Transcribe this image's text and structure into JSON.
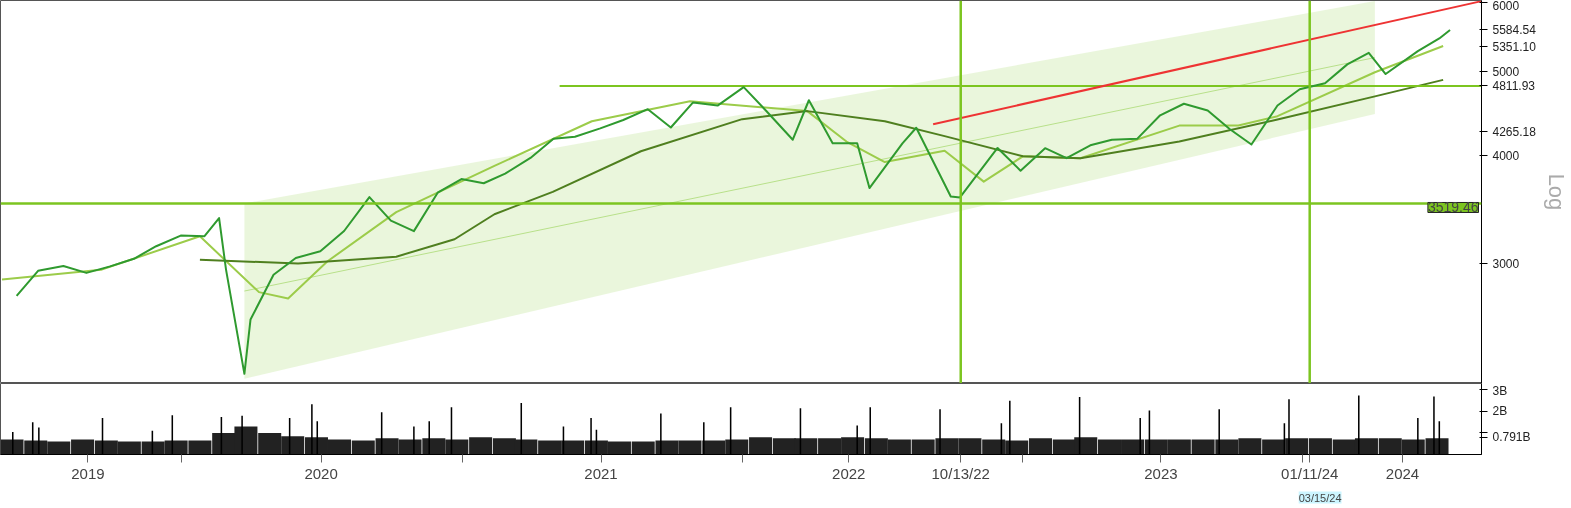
{
  "chart_data": [
    {
      "type": "line",
      "ylabel": "Log",
      "log": true,
      "tick_labels": "y",
      "grid": false,
      "xlim": [
        "2019-05-10",
        "2024-08-22"
      ],
      "ylim": [
        2180,
        6040
      ],
      "yticks": [
        3000,
        4000,
        {
          "value": 4265.18,
          "label": "4265.18"
        },
        {
          "value": 4811.93,
          "label": "4811.93"
        },
        5000,
        {
          "value": 5351.1,
          "label": "5351.10"
        },
        {
          "value": 5584.54,
          "label": "5584.54"
        },
        6000
      ],
      "series": [
        {
          "type": "line",
          "color": "#b8e08a",
          "x": [
            "2020-03-23",
            "2024-04-05"
          ],
          "values": [
            2788,
            5189
          ],
          "lower": [
            2208,
            4465
          ],
          "upper": [
            3520,
            6030
          ]
        },
        {
          "type": "line",
          "color": "#9ccc4a",
          "x": [
            "2019-05-12",
            "2019-09-18",
            "2020-01-25",
            "2020-04-11",
            "2020-05-19",
            "2020-07-09",
            "2020-10-07",
            "2021-02-12",
            "2021-06-19",
            "2021-10-25",
            "2022-01-10",
            "2022-03-27",
            "2022-05-17",
            "2022-07-06",
            "2022-09-22",
            "2022-11-12",
            "2023-01-02",
            "2023-03-18",
            "2023-07-25",
            "2023-10-10",
            "2023-11-30",
            "2024-04-05",
            "2024-07-03"
          ],
          "values": [
            2875,
            2950,
            3225,
            2780,
            2733,
            3016,
            3440,
            3890,
            4380,
            4620,
            4560,
            4500,
            4150,
            3930,
            4050,
            3730,
            3990,
            3970,
            4330,
            4330,
            4440,
            4990,
            5351
          ]
        },
        {
          "type": "line",
          "color": "#4f7f1f",
          "x": [
            "2020-01-25",
            "2020-06-01",
            "2020-10-07",
            "2020-12-22",
            "2021-02-12",
            "2021-04-29",
            "2021-08-22",
            "2022-01-01",
            "2022-03-27",
            "2022-07-06",
            "2022-09-22",
            "2023-01-02",
            "2023-03-18",
            "2023-07-25",
            "2023-11-30",
            "2024-04-05",
            "2024-07-03"
          ],
          "values": [
            3030,
            3000,
            3055,
            3200,
            3420,
            3630,
            4044,
            4405,
            4500,
            4380,
            4210,
            3990,
            3970,
            4150,
            4400,
            4680,
            4890
          ]
        },
        {
          "type": "line",
          "color": "#7cc520",
          "x": [
            "2021-05-08",
            "2024-08-22"
          ],
          "values": [
            4811.93,
            4811.93
          ]
        },
        {
          "type": "line",
          "color": "#ee3333",
          "x": [
            "2022-09-07",
            "2024-08-22"
          ],
          "values": [
            4346,
            6030
          ]
        },
        {
          "type": "line",
          "color": "#2f9a2f",
          "x": [
            "2019-05-31",
            "2019-06-28",
            "2019-07-31",
            "2019-08-30",
            "2019-09-30",
            "2019-10-31",
            "2019-11-29",
            "2019-12-31",
            "2020-01-31",
            "2020-02-19",
            "2020-02-28",
            "2020-03-23",
            "2020-03-31",
            "2020-04-30",
            "2020-05-29",
            "2020-06-30",
            "2020-07-31",
            "2020-09-02",
            "2020-09-30",
            "2020-10-30",
            "2020-11-30",
            "2020-12-31",
            "2021-01-29",
            "2021-02-26",
            "2021-03-31",
            "2021-04-30",
            "2021-05-28",
            "2021-06-30",
            "2021-07-30",
            "2021-08-31",
            "2021-09-30",
            "2021-10-29",
            "2021-11-30",
            "2022-01-03",
            "2022-01-31",
            "2022-03-08",
            "2022-03-29",
            "2022-04-29",
            "2022-05-31",
            "2022-06-16",
            "2022-07-29",
            "2022-08-16",
            "2022-09-30",
            "2022-10-12",
            "2022-11-30",
            "2022-12-30",
            "2023-01-31",
            "2023-02-28",
            "2023-03-31",
            "2023-04-28",
            "2023-05-31",
            "2023-06-30",
            "2023-07-31",
            "2023-08-31",
            "2023-09-29",
            "2023-10-27",
            "2023-11-30",
            "2023-12-29",
            "2024-01-31",
            "2024-02-29",
            "2024-03-28",
            "2024-04-19",
            "2024-05-31",
            "2024-06-28",
            "2024-07-12"
          ],
          "values": [
            2752,
            2942,
            2980,
            2926,
            2977,
            3038,
            3141,
            3231,
            3226,
            3386,
            2954,
            2237,
            2585,
            2912,
            3044,
            3100,
            3271,
            3580,
            3363,
            3270,
            3622,
            3756,
            3714,
            3811,
            3973,
            4181,
            4204,
            4298,
            4395,
            4523,
            4308,
            4605,
            4567,
            4796,
            4516,
            4170,
            4632,
            4132,
            4132,
            3667,
            4130,
            4305,
            3586,
            3577,
            4080,
            3840,
            4077,
            3970,
            4109,
            4169,
            4180,
            4450,
            4589,
            4508,
            4288,
            4117,
            4568,
            4770,
            4846,
            5096,
            5254,
            4967,
            5278,
            5460,
            5584.54
          ]
        }
      ],
      "ref_lines": [
        {
          "axis": "y",
          "value": 3519.46,
          "label": "3519.46",
          "color": "#7cc520"
        },
        {
          "axis": "x",
          "value": "2022-10-13",
          "color": "#7cc520"
        },
        {
          "axis": "x",
          "value": "2024-01-11",
          "color": "#7cc520"
        }
      ]
    },
    {
      "type": "bar",
      "grid": false,
      "xlim": [
        "2019-05-10",
        "2024-08-22"
      ],
      "ylim": [
        0,
        3.3
      ],
      "annotations": [
        "03/15/24"
      ],
      "yticks": [
        {
          "value": 0.791,
          "label": "0.791B"
        },
        {
          "value": 1,
          "label": null
        },
        {
          "value": 2,
          "label": "2B"
        },
        {
          "value": 3,
          "label": "3B"
        }
      ],
      "xticks": [
        {
          "value": "2019-09-01",
          "label": "2019"
        },
        {
          "value": "2020-01-01",
          "label": null
        },
        {
          "value": "2020-07-01",
          "label": "2020"
        },
        {
          "value": "2021-01-01",
          "label": null
        },
        {
          "value": "2021-07-01",
          "label": "2021"
        },
        {
          "value": "2022-01-01",
          "label": null
        },
        {
          "value": "2022-05-20",
          "label": "2022"
        },
        {
          "value": "2022-10-13",
          "label": "10/13/22"
        },
        {
          "value": "2023-01-01",
          "label": null
        },
        {
          "value": "2023-07-01",
          "label": "2023"
        },
        {
          "value": "2024-01-01",
          "label": null
        },
        {
          "value": "2024-01-11",
          "label": "01/11/24"
        },
        {
          "value": "2024-05-11",
          "label": "2024"
        }
      ],
      "series": [
        {
          "color": "#222222",
          "x": [
            "2019-05-25",
            "2019-06-25",
            "2019-07-25",
            "2019-08-25",
            "2019-09-25",
            "2019-10-25",
            "2019-11-25",
            "2019-12-25",
            "2020-01-25",
            "2020-02-25",
            "2020-03-25",
            "2020-04-25",
            "2020-05-25",
            "2020-06-25",
            "2020-07-25",
            "2020-08-25",
            "2020-09-25",
            "2020-10-25",
            "2020-11-25",
            "2020-12-25",
            "2021-01-25",
            "2021-02-25",
            "2021-03-25",
            "2021-04-25",
            "2021-05-25",
            "2021-06-25",
            "2021-07-25",
            "2021-08-25",
            "2021-09-25",
            "2021-10-25",
            "2021-11-25",
            "2021-12-25",
            "2022-01-25",
            "2022-02-25",
            "2022-03-25",
            "2022-04-25",
            "2022-05-25",
            "2022-06-25",
            "2022-07-25",
            "2022-08-25",
            "2022-09-25",
            "2022-10-25",
            "2022-11-25",
            "2022-12-25",
            "2023-01-25",
            "2023-02-25",
            "2023-03-25",
            "2023-04-25",
            "2023-05-25",
            "2023-06-25",
            "2023-07-25",
            "2023-08-25",
            "2023-09-25",
            "2023-10-25",
            "2023-11-25",
            "2023-12-25",
            "2024-01-25",
            "2024-02-25",
            "2024-03-25",
            "2024-04-25",
            "2024-05-25",
            "2024-06-25"
          ],
          "values": [
            0.7,
            0.65,
            0.6,
            0.7,
            0.65,
            0.6,
            0.6,
            0.65,
            0.65,
            1.0,
            1.3,
            1.0,
            0.85,
            0.8,
            0.7,
            0.65,
            0.75,
            0.7,
            0.75,
            0.7,
            0.8,
            0.75,
            0.7,
            0.65,
            0.65,
            0.65,
            0.6,
            0.6,
            0.65,
            0.65,
            0.65,
            0.7,
            0.8,
            0.75,
            0.75,
            0.75,
            0.8,
            0.75,
            0.7,
            0.7,
            0.75,
            0.75,
            0.7,
            0.65,
            0.75,
            0.7,
            0.8,
            0.7,
            0.7,
            0.7,
            0.7,
            0.7,
            0.7,
            0.75,
            0.7,
            0.75,
            0.75,
            0.7,
            0.75,
            0.75,
            0.7,
            0.75
          ]
        },
        {
          "color": "#000000",
          "x": [
            "2019-05-26",
            "2019-06-21",
            "2019-06-29",
            "2019-09-20",
            "2019-11-24",
            "2019-12-20",
            "2020-02-22",
            "2020-03-20",
            "2020-05-21",
            "2020-06-19",
            "2020-06-26",
            "2020-09-18",
            "2020-10-30",
            "2020-11-19",
            "2020-12-18",
            "2021-03-19",
            "2021-05-13",
            "2021-06-18",
            "2021-06-25",
            "2021-09-17",
            "2021-11-12",
            "2021-12-17",
            "2022-03-18",
            "2022-05-31",
            "2022-06-17",
            "2022-09-16",
            "2022-12-05",
            "2022-12-16",
            "2023-03-17",
            "2023-06-04",
            "2023-06-16",
            "2023-09-15",
            "2023-12-09",
            "2023-12-15",
            "2024-03-15",
            "2024-05-31",
            "2024-06-21",
            "2024-06-28"
          ],
          "values": [
            1.05,
            1.5,
            1.25,
            1.7,
            1.1,
            1.83,
            1.74,
            1.8,
            1.7,
            2.33,
            1.55,
            1.96,
            1.3,
            1.55,
            2.2,
            2.39,
            1.3,
            1.7,
            1.15,
            1.9,
            1.5,
            2.2,
            2.15,
            1.35,
            2.2,
            2.1,
            1.45,
            2.5,
            2.67,
            1.7,
            2.05,
            2.1,
            1.45,
            2.57,
            2.74,
            1.7,
            2.7,
            1.55
          ]
        }
      ]
    }
  ]
}
